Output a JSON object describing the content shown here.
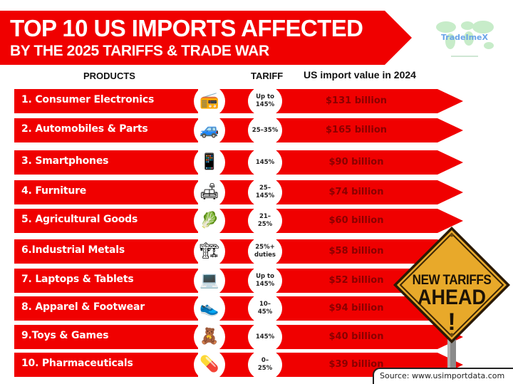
{
  "header": {
    "title_line1": "TOP 10 US IMPORTS AFFECTED",
    "title_line2": "BY THE 2025 TARIFFS & TRADE WAR",
    "logo_text": "TradeImeX"
  },
  "colors": {
    "primary_red": "#f00000",
    "value_text": "#8a0000",
    "sign_yellow": "#e8a92a",
    "logo_blue": "#6aa4e8",
    "logo_green": "#bfe8c4"
  },
  "columns": {
    "products": "PRODUCTS",
    "tariff": "TARIFF",
    "value": "US import value in 2024"
  },
  "rows": [
    {
      "label": "1. Consumer Electronics",
      "icon": "electronics-icon",
      "glyph": "📻",
      "tariff": "Up to\n145%",
      "value": "$131 billion"
    },
    {
      "label": "2. Automobiles & Parts",
      "icon": "car-parts-icon",
      "glyph": "🚙",
      "tariff": "25–35%",
      "value": "$165 billion"
    },
    {
      "label": "3. Smartphones",
      "icon": "smartphone-icon",
      "glyph": "📱",
      "tariff": "145%",
      "value": "$90 billion"
    },
    {
      "label": "4. Furniture",
      "icon": "furniture-icon",
      "glyph": "🛋",
      "tariff": "25–\n145%",
      "value": "$74 billion"
    },
    {
      "label": "5. Agricultural Goods",
      "icon": "produce-box-icon",
      "glyph": "🥬",
      "tariff": "21–\n25%",
      "value": "$60 billion"
    },
    {
      "label": "6.Industrial Metals",
      "icon": "metal-ingots-icon",
      "glyph": "🏗",
      "tariff": "25%+\nduties",
      "value": "$58 billion"
    },
    {
      "label": "7. Laptops & Tablets",
      "icon": "laptops-icon",
      "glyph": "💻",
      "tariff": "Up to\n145%",
      "value": "$52 billion"
    },
    {
      "label": "8. Apparel & Footwear",
      "icon": "sneaker-icon",
      "glyph": "👟",
      "tariff": "10–\n45%",
      "value": "$94 billion"
    },
    {
      "label": "9.Toys & Games",
      "icon": "toys-icon",
      "glyph": "🧸",
      "tariff": "145%",
      "value": "$40 billion"
    },
    {
      "label": "10. Pharmaceuticals",
      "icon": "medicine-bottles-icon",
      "glyph": "💊",
      "tariff": "0–\n25%",
      "value": "$39 billion"
    }
  ],
  "sign": {
    "line1": "NEW TARIFFS",
    "line2": "AHEAD",
    "line3": "!"
  },
  "footer": {
    "source": "Source: www.usimportdata.com"
  },
  "chart_data": {
    "type": "table",
    "title": "TOP 10 US IMPORTS AFFECTED BY THE 2025 TARIFFS & TRADE WAR",
    "columns": [
      "PRODUCTS",
      "TARIFF",
      "US import value in 2024"
    ],
    "categories": [
      "Consumer Electronics",
      "Automobiles & Parts",
      "Smartphones",
      "Furniture",
      "Agricultural Goods",
      "Industrial Metals",
      "Laptops & Tablets",
      "Apparel & Footwear",
      "Toys & Games",
      "Pharmaceuticals"
    ],
    "tariffs": [
      "Up to 145%",
      "25–35%",
      "145%",
      "25–145%",
      "21–25%",
      "25%+ duties",
      "Up to 145%",
      "10–45%",
      "145%",
      "0–25%"
    ],
    "series": [
      {
        "name": "US import value in 2024 ($ billion)",
        "values": [
          131,
          165,
          90,
          74,
          60,
          58,
          52,
          94,
          40,
          39
        ]
      }
    ],
    "source": "Source: www.usimportdata.com"
  }
}
